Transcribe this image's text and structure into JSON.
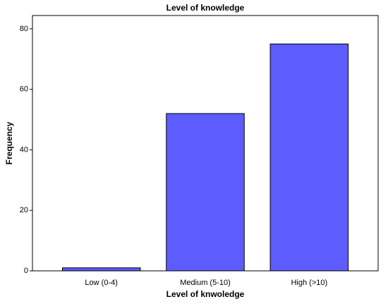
{
  "chart_data": {
    "type": "bar",
    "title": "Level of knowledge",
    "x_label": "Level of knwoledge",
    "y_label": "Frequency",
    "categories": [
      "Low (0-4)",
      "Medium (5-10)",
      "High (>10)"
    ],
    "values": [
      1,
      52,
      75
    ],
    "color": "#5c5cff",
    "ylim": [
      0,
      84.4
    ],
    "yticks": [
      0,
      20,
      40,
      60,
      80
    ],
    "grid": false
  }
}
